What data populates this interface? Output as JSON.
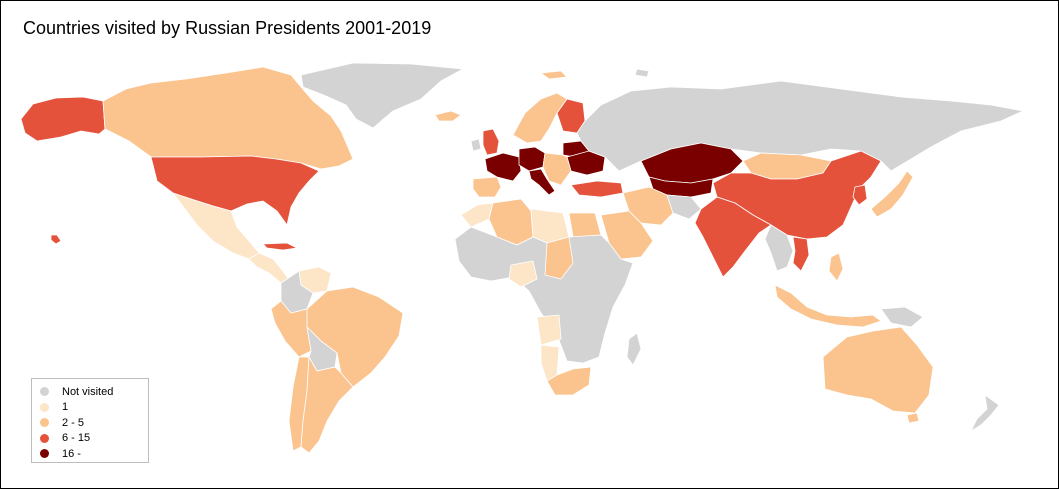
{
  "title": "Countries visited by Russian Presidents 2001-2019",
  "legend": [
    {
      "label": "Not visited",
      "color": "#d3d3d3"
    },
    {
      "label": "1",
      "color": "#fde5c8"
    },
    {
      "label": "2 - 5",
      "color": "#fbc38e"
    },
    {
      "label": "6 - 15",
      "color": "#e5523b"
    },
    {
      "label": "16 -",
      "color": "#7a0000"
    }
  ],
  "regions": [
    {
      "name": "Russia",
      "level": "not_visited"
    },
    {
      "name": "Greenland",
      "level": "not_visited"
    },
    {
      "name": "Canada",
      "level": "2-5"
    },
    {
      "name": "Alaska",
      "level": "6-15"
    },
    {
      "name": "United States",
      "level": "6-15"
    },
    {
      "name": "Hawaii",
      "level": "6-15"
    },
    {
      "name": "Mexico",
      "level": "1"
    },
    {
      "name": "Cuba",
      "level": "6-15"
    },
    {
      "name": "Central America",
      "level": "1"
    },
    {
      "name": "Venezuela",
      "level": "1"
    },
    {
      "name": "Colombia",
      "level": "not_visited"
    },
    {
      "name": "Brazil",
      "level": "2-5"
    },
    {
      "name": "Peru",
      "level": "2-5"
    },
    {
      "name": "Bolivia",
      "level": "not_visited"
    },
    {
      "name": "Argentina",
      "level": "2-5"
    },
    {
      "name": "Chile",
      "level": "2-5"
    },
    {
      "name": "Iceland",
      "level": "2-5"
    },
    {
      "name": "Scandinavia",
      "level": "2-5"
    },
    {
      "name": "Finland",
      "level": "6-15"
    },
    {
      "name": "United Kingdom",
      "level": "6-15"
    },
    {
      "name": "Ireland",
      "level": "not_visited"
    },
    {
      "name": "France",
      "level": "16+"
    },
    {
      "name": "Germany",
      "level": "16+"
    },
    {
      "name": "Italy",
      "level": "16+"
    },
    {
      "name": "Ukraine",
      "level": "16+"
    },
    {
      "name": "Belarus",
      "level": "16+"
    },
    {
      "name": "Spain",
      "level": "2-5"
    },
    {
      "name": "Turkey",
      "level": "6-15"
    },
    {
      "name": "Kazakhstan",
      "level": "16+"
    },
    {
      "name": "Uzbekistan",
      "level": "16+"
    },
    {
      "name": "Mongolia",
      "level": "2-5"
    },
    {
      "name": "China",
      "level": "6-15"
    },
    {
      "name": "India",
      "level": "6-15"
    },
    {
      "name": "Vietnam",
      "level": "6-15"
    },
    {
      "name": "Japan",
      "level": "2-5"
    },
    {
      "name": "Korea",
      "level": "6-15"
    },
    {
      "name": "Iran",
      "level": "2-5"
    },
    {
      "name": "Saudi Arabia",
      "level": "2-5"
    },
    {
      "name": "Afghanistan",
      "level": "not_visited"
    },
    {
      "name": "Indonesia",
      "level": "2-5"
    },
    {
      "name": "Philippines",
      "level": "2-5"
    },
    {
      "name": "Papua New Guinea",
      "level": "not_visited"
    },
    {
      "name": "Australia",
      "level": "2-5"
    },
    {
      "name": "New Zealand",
      "level": "not_visited"
    },
    {
      "name": "Algeria",
      "level": "2-5"
    },
    {
      "name": "Morocco",
      "level": "1"
    },
    {
      "name": "Libya",
      "level": "1"
    },
    {
      "name": "Egypt",
      "level": "2-5"
    },
    {
      "name": "Sudan",
      "level": "2-5"
    },
    {
      "name": "Central Africa",
      "level": "not_visited"
    },
    {
      "name": "Nigeria",
      "level": "1"
    },
    {
      "name": "Angola",
      "level": "1"
    },
    {
      "name": "Namibia",
      "level": "1"
    },
    {
      "name": "South Africa",
      "level": "2-5"
    },
    {
      "name": "Madagascar",
      "level": "not_visited"
    }
  ]
}
